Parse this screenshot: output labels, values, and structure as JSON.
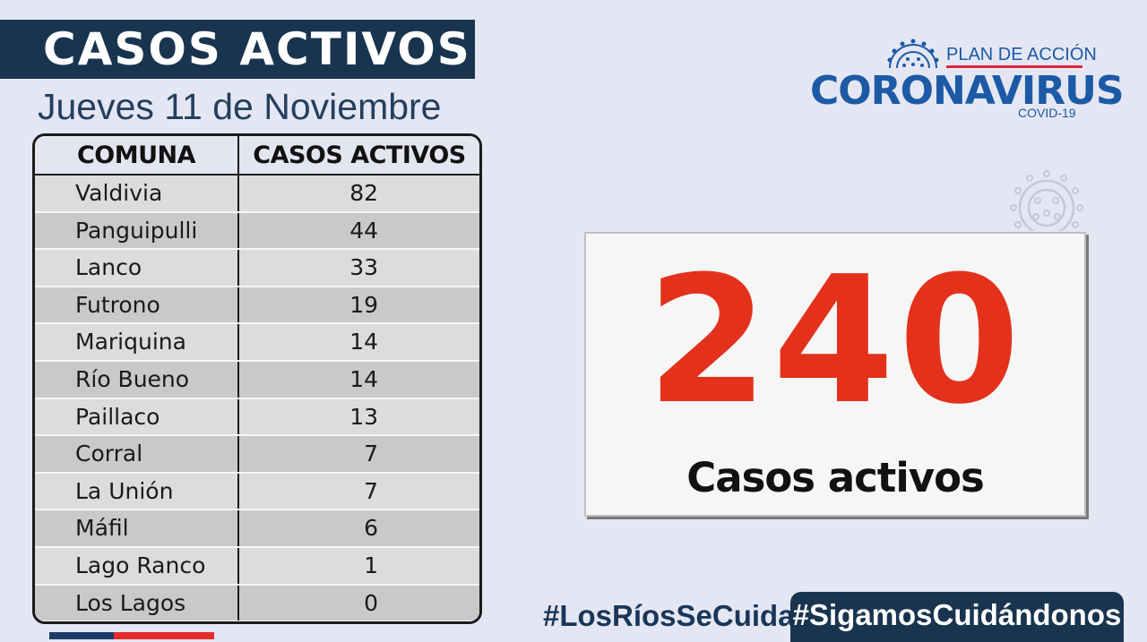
{
  "header": {
    "title": "CASOS ACTIVOS",
    "date": "Jueves 11 de Noviembre"
  },
  "table": {
    "columns": [
      "COMUNA",
      "CASOS ACTIVOS"
    ],
    "rows": [
      {
        "comuna": "Valdivia",
        "casos": "82"
      },
      {
        "comuna": "Panguipulli",
        "casos": "44"
      },
      {
        "comuna": "Lanco",
        "casos": "33"
      },
      {
        "comuna": "Futrono",
        "casos": "19"
      },
      {
        "comuna": "Mariquina",
        "casos": "14"
      },
      {
        "comuna": "Río Bueno",
        "casos": "14"
      },
      {
        "comuna": "Paillaco",
        "casos": "13"
      },
      {
        "comuna": "Corral",
        "casos": "7"
      },
      {
        "comuna": "La Unión",
        "casos": "7"
      },
      {
        "comuna": "Máfil",
        "casos": "6"
      },
      {
        "comuna": "Lago Ranco",
        "casos": "1"
      },
      {
        "comuna": "Los Lagos",
        "casos": "0"
      }
    ]
  },
  "logo": {
    "line1": "PLAN DE ACCIÓN",
    "line2": "CORONAVIRUS",
    "line3": "COVID-19"
  },
  "summary": {
    "total": "240",
    "label": "Casos activos"
  },
  "footer": {
    "hashtag_left": "#LosRíosSeCuida",
    "hashtag_right": "#SigamosCuidándonos"
  },
  "colors": {
    "navy": "#19344f",
    "accent_red": "#e4311c",
    "logo_blue": "#1c5aa6"
  }
}
